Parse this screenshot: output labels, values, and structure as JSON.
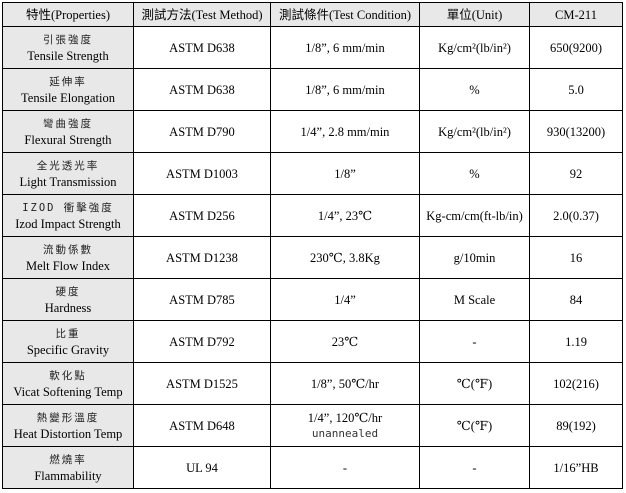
{
  "headers": {
    "property": "特性(Properties)",
    "method": "測試方法(Test Method)",
    "condition": "測試條件(Test Condition)",
    "unit": "單位(Unit)",
    "grade": "CM-211"
  },
  "rows": [
    {
      "zh": "引張強度",
      "en": "Tensile Strength",
      "method": "ASTM D638",
      "cond": "1/8”, 6 mm/min",
      "unit": "Kg/cm²(lb/in²)",
      "value": "650(9200)"
    },
    {
      "zh": "延伸率",
      "en": "Tensile Elongation",
      "method": "ASTM D638",
      "cond": "1/8”, 6 mm/min",
      "unit": "%",
      "value": "5.0"
    },
    {
      "zh": "彎曲強度",
      "en": "Flexural Strength",
      "method": "ASTM D790",
      "cond": "1/4”, 2.8 mm/min",
      "unit": "Kg/cm²(lb/in²)",
      "value": "930(13200)"
    },
    {
      "zh": "全光透光率",
      "en": "Light Transmission",
      "method": "ASTM D1003",
      "cond": "1/8”",
      "unit": "%",
      "value": "92"
    },
    {
      "zh": "IZOD 衝擊強度",
      "en": "Izod Impact Strength",
      "method": "ASTM D256",
      "cond": "1/4”, 23℃",
      "unit": "Kg-cm/cm(ft-lb/in)",
      "value": "2.0(0.37)"
    },
    {
      "zh": "流動係數",
      "en": "Melt Flow Index",
      "method": "ASTM D1238",
      "cond": "230℃, 3.8Kg",
      "unit": "g/10min",
      "value": "16"
    },
    {
      "zh": "硬度",
      "en": "Hardness",
      "method": "ASTM D785",
      "cond": "1/4”",
      "unit": "M Scale",
      "value": "84"
    },
    {
      "zh": "比重",
      "en": "Specific Gravity",
      "method": "ASTM D792",
      "cond": "23℃",
      "unit": "-",
      "value": "1.19"
    },
    {
      "zh": "軟化點",
      "en": "Vicat Softening Temp",
      "method": "ASTM D1525",
      "cond": "1/8”, 50℃/hr",
      "unit": "℃(℉)",
      "value": "102(216)"
    },
    {
      "zh": "熱變形溫度",
      "en": "Heat Distortion Temp",
      "method": "ASTM D648",
      "cond": "1/4”, 120℃/hr",
      "cond2": "unannealed",
      "unit": "℃(℉)",
      "value": "89(192)"
    },
    {
      "zh": "燃燒率",
      "en": "Flammability",
      "method": "UL 94",
      "cond": "-",
      "unit": "-",
      "value": "1/16”HB"
    }
  ]
}
